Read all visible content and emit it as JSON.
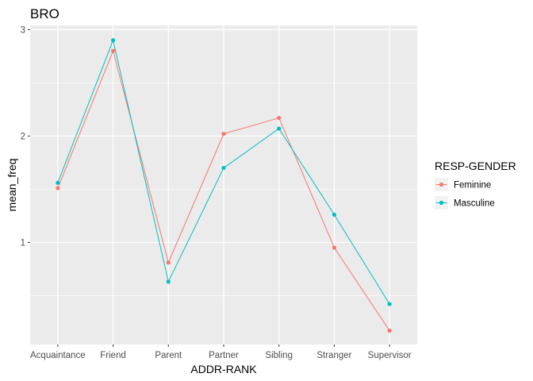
{
  "chart_data": {
    "type": "line",
    "title": "BRO",
    "xlabel": "ADDR-RANK",
    "ylabel": "mean_freq",
    "categories": [
      "Acquaintance",
      "Friend",
      "Parent",
      "Partner",
      "Sibling",
      "Stranger",
      "Supervisor"
    ],
    "ylim": [
      0.04,
      3.04
    ],
    "yticks": [
      1,
      2,
      3
    ],
    "grid": true,
    "legend": {
      "title": "RESP-GENDER",
      "position": "right"
    },
    "series": [
      {
        "name": "Feminine",
        "color": "#F8766D",
        "values": [
          1.51,
          2.8,
          0.81,
          2.02,
          2.17,
          0.95,
          0.17
        ]
      },
      {
        "name": "Masculine",
        "color": "#00BFC4",
        "values": [
          1.56,
          2.9,
          0.63,
          1.7,
          2.07,
          1.26,
          0.42
        ]
      }
    ]
  }
}
